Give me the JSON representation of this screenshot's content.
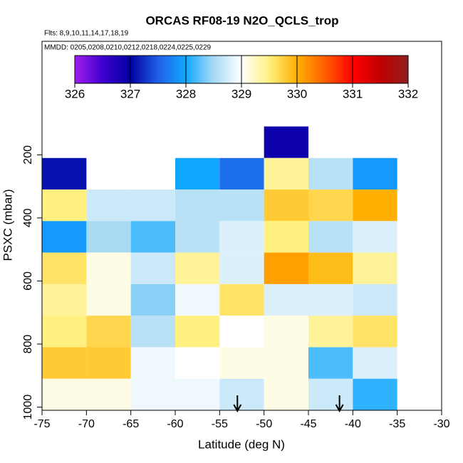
{
  "chart_data": {
    "type": "heatmap",
    "title": "ORCAS RF08-19 N2O_QCLS_trop",
    "subtitle": "Flts: 8,9,10,11,14,17,18,19",
    "note": "MMDD: 0205,0208,0210,0212,0218,0224,0225,0229",
    "x_label": "Latitude (deg N)",
    "y_label": "PSXC (mbar)",
    "xlim": [
      -75,
      -30
    ],
    "xticks": [
      -75,
      -70,
      -65,
      -60,
      -55,
      -50,
      -45,
      -40,
      -35,
      -30
    ],
    "ylim": [
      1010,
      -160
    ],
    "yticks": [
      200,
      400,
      600,
      800,
      1000
    ],
    "x_edges": [
      -75,
      -70,
      -65,
      -60,
      -55,
      -50,
      -45,
      -40,
      -35
    ],
    "y_edges": [
      110,
      210,
      310,
      410,
      510,
      610,
      710,
      810,
      910,
      1010
    ],
    "z": [
      [
        null,
        null,
        null,
        null,
        null,
        326.9,
        null,
        null
      ],
      [
        327.1,
        null,
        null,
        328.0,
        327.6,
        329.4,
        328.6,
        327.9
      ],
      [
        329.5,
        328.7,
        328.7,
        328.6,
        328.6,
        329.8,
        329.7,
        330.0
      ],
      [
        327.9,
        328.5,
        328.2,
        328.6,
        328.8,
        329.5,
        328.6,
        328.8
      ],
      [
        329.6,
        329.1,
        328.7,
        329.4,
        328.8,
        330.1,
        329.9,
        329.4
      ],
      [
        329.4,
        329.1,
        328.4,
        328.9,
        329.6,
        328.8,
        328.8,
        328.7
      ],
      [
        329.5,
        329.7,
        328.6,
        329.5,
        329.0,
        329.1,
        329.4,
        329.6
      ],
      [
        329.8,
        329.8,
        328.9,
        329.0,
        329.1,
        329.1,
        328.2,
        328.8
      ],
      [
        329.1,
        329.1,
        328.9,
        328.9,
        328.7,
        329.1,
        328.7,
        328.1
      ]
    ],
    "colorbar": {
      "lim": [
        326,
        332
      ],
      "ticks": [
        326,
        327,
        328,
        329,
        330,
        331,
        332
      ],
      "colors": [
        "#a020f0",
        "#4000d0",
        "#0000a0",
        "#2060e8",
        "#10a8ff",
        "#a8daf4",
        "#ffffff",
        "#fff080",
        "#ffb000",
        "#ff6000",
        "#ff0000",
        "#c00000",
        "#902020"
      ]
    },
    "arrows": [
      -53,
      -41.5
    ]
  }
}
